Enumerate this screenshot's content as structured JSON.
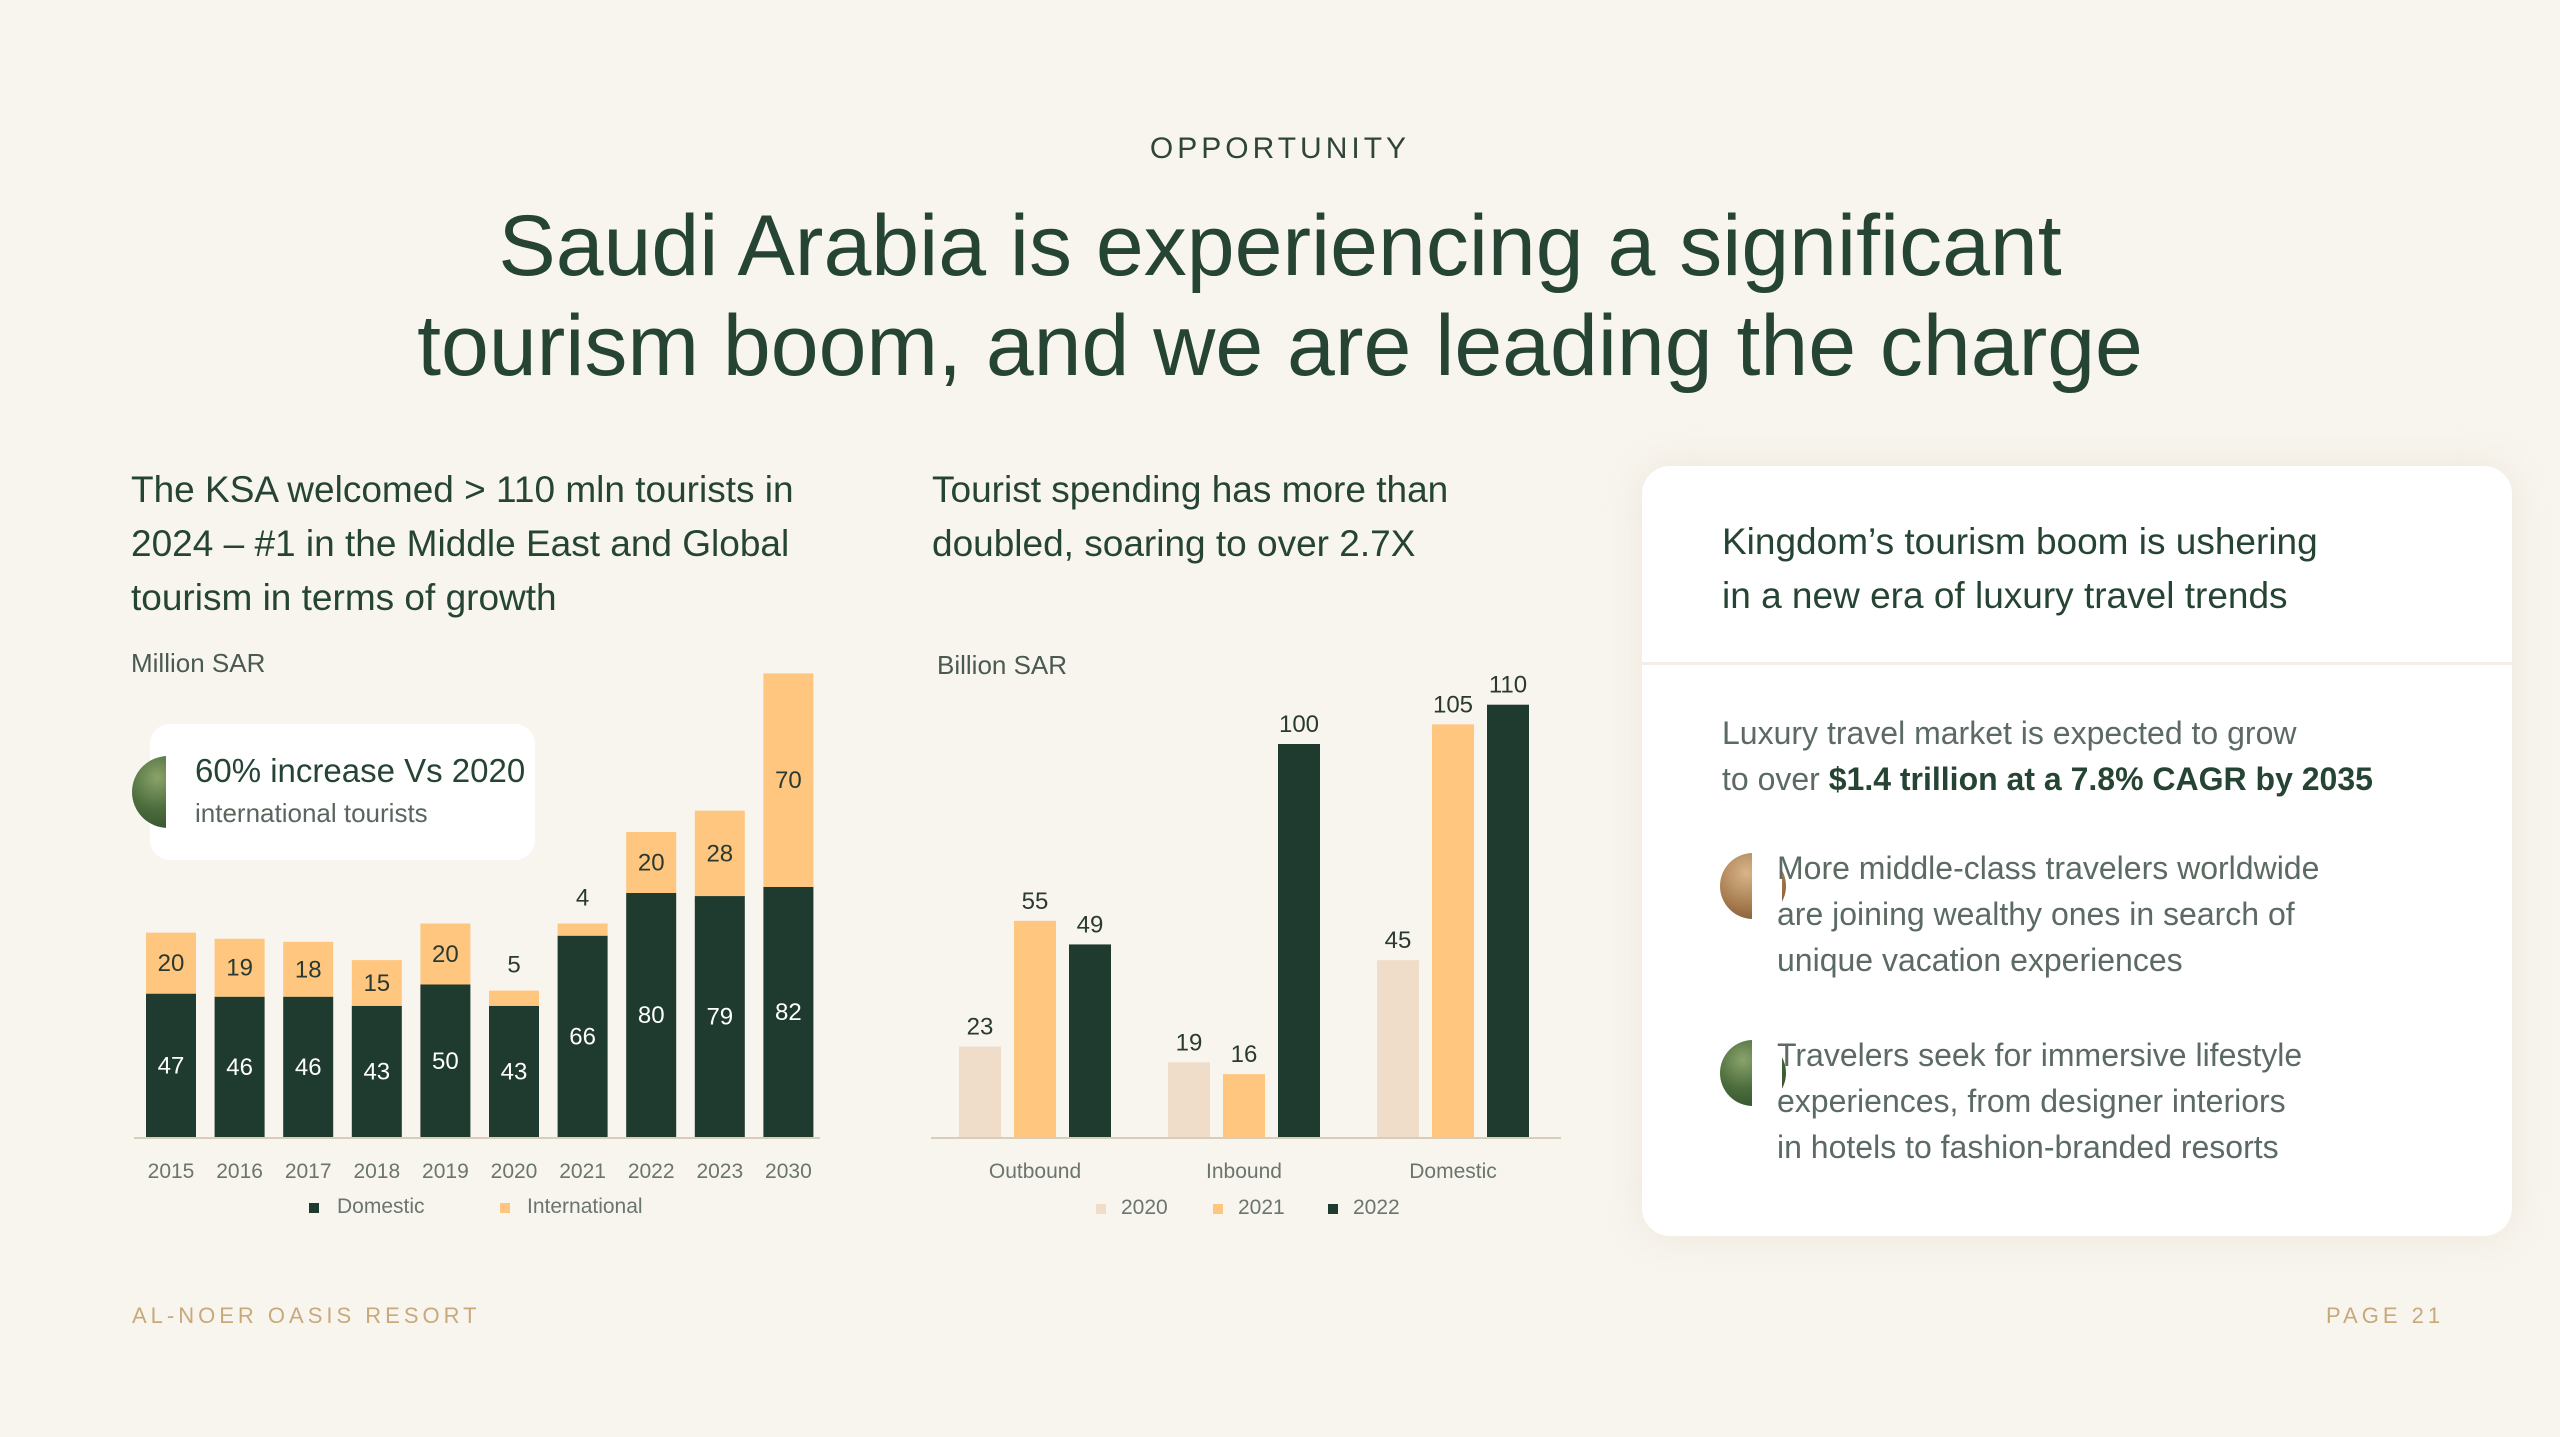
{
  "header": {
    "eyebrow": "OPPORTUNITY",
    "headline_line1": "Saudi Arabia is experiencing a significant",
    "headline_line2": "tourism boom, and we are leading the charge"
  },
  "left": {
    "title_line1": "The KSA welcomed > 110 mln tourists in",
    "title_line2": "2024 – #1  in the Middle East and Global",
    "title_line3": "tourism in terms of growth",
    "unit": "Million SAR",
    "callout": {
      "title": "60% increase Vs 2020",
      "subtitle": "international tourists",
      "icon": "leaf-icon"
    }
  },
  "middle": {
    "title_line1": "Tourist spending has more than",
    "title_line2": "doubled, soaring to over 2.7X",
    "unit": "Billion SAR"
  },
  "right": {
    "title_line1": "Kingdom’s tourism boom is ushering",
    "title_line2": "in a new era of luxury travel trends",
    "intro_line1": "Luxury travel market is expected to grow",
    "intro_line2_plain": "to over ",
    "intro_line2_bold": "$1.4 trillion at a 7.8% CAGR by 2035",
    "bullets": [
      {
        "icon": "sand-icon",
        "lines": [
          "More middle-class travelers worldwide",
          "are joining wealthy ones in search of",
          "unique vacation experiences"
        ]
      },
      {
        "icon": "leaf-icon",
        "lines": [
          "Travelers seek for immersive lifestyle",
          "experiences, from designer interiors",
          "in hotels to fashion-branded resorts"
        ]
      }
    ]
  },
  "footer": {
    "brand": "AL-NOER OASIS RESORT",
    "page": "PAGE  21"
  },
  "colors": {
    "background": "#f8f5ef",
    "dark_green": "#1f3a2e",
    "light_orange": "#fec67e",
    "beige": "#efdcc9",
    "heading": "#264433",
    "footer": "#c8a97a"
  },
  "chart_data": [
    {
      "type": "bar",
      "stacked": true,
      "categories": [
        "2015",
        "2016",
        "2017",
        "2018",
        "2019",
        "2020",
        "2021",
        "2022",
        "2023",
        "2030"
      ],
      "series": [
        {
          "name": "Domestic",
          "values": [
            47,
            46,
            46,
            43,
            50,
            43,
            66,
            80,
            79,
            82
          ],
          "color": "#1f3a2e"
        },
        {
          "name": "International",
          "values": [
            20,
            19,
            18,
            15,
            20,
            5,
            4,
            20,
            28,
            70
          ],
          "color": "#fec67e"
        }
      ],
      "ylabel": "Million SAR",
      "ylim": [
        0,
        152
      ],
      "grid": false,
      "legend": "bottom"
    },
    {
      "type": "bar",
      "categories": [
        "Outbound",
        "Inbound",
        "Domestic"
      ],
      "series": [
        {
          "name": "2020",
          "values": [
            23,
            19,
            45
          ],
          "color": "#efdcc9"
        },
        {
          "name": "2021",
          "values": [
            55,
            16,
            105
          ],
          "color": "#fec67e"
        },
        {
          "name": "2022",
          "values": [
            49,
            100,
            110
          ],
          "color": "#1f3a2e"
        }
      ],
      "ylabel": "Billion SAR",
      "ylim": [
        0,
        118
      ],
      "grid": false,
      "legend": "bottom"
    }
  ]
}
